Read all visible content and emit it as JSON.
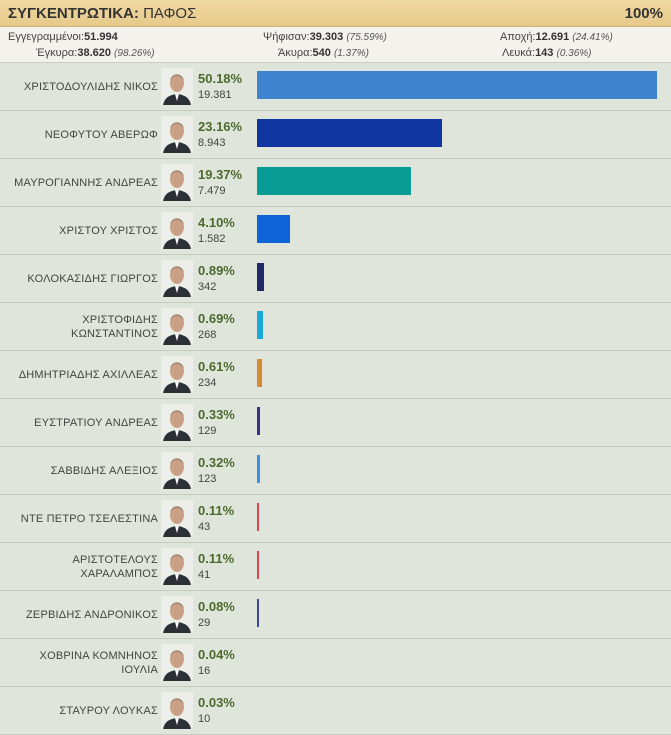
{
  "header": {
    "title_bold": "ΣΥΓΚΕΝΤΡΩΤΙΚΑ:",
    "title_place": "ΠΑΦΟΣ",
    "percent": "100%"
  },
  "stats": {
    "registered": {
      "label": "Εγγεγραμμένοι:",
      "value": "51.994"
    },
    "voted": {
      "label": "Ψήφισαν:",
      "value": "39.303",
      "pct": "(75.59%)"
    },
    "abstention": {
      "label": "Αποχή:",
      "value": "12.691",
      "pct": "(24.41%)"
    },
    "valid": {
      "label": "Έγκυρα:",
      "value": "38.620",
      "pct": "(98.26%)"
    },
    "invalid": {
      "label": "Άκυρα:",
      "value": "540",
      "pct": "(1.37%)"
    },
    "blank": {
      "label": "Λευκά:",
      "value": "143",
      "pct": "(0.36%)"
    }
  },
  "chart_data": {
    "type": "bar",
    "orientation": "horizontal",
    "xlim": [
      0,
      50.18
    ],
    "categories": [
      "ΧΡΙΣΤΟΔΟΥΛΙΔΗΣ ΝΙΚΟΣ",
      "ΝΕΟΦΥΤΟΥ ΑΒΕΡΩΦ",
      "ΜΑΥΡΟΓΙΑΝΝΗΣ ΑΝΔΡΕΑΣ",
      "ΧΡΙΣΤΟΥ ΧΡΙΣΤΟΣ",
      "ΚΟΛΟΚΑΣΙΔΗΣ ΓΙΩΡΓΟΣ",
      "ΧΡΙΣΤΟΦΙΔΗΣ ΚΩΝΣΤΑΝΤΙΝΟΣ",
      "ΔΗΜΗΤΡΙΑΔΗΣ ΑΧΙΛΛΕΑΣ",
      "ΕΥΣΤΡΑΤΙΟΥ ΑΝΔΡΕΑΣ",
      "ΣΑΒΒΙΔΗΣ ΑΛΕΞΙΟΣ",
      "ΝΤΕ ΠΕΤΡΟ ΤΣΕΛΕΣΤΙΝΑ",
      "ΑΡΙΣΤΟΤΕΛΟΥΣ ΧΑΡΑΛΑΜΠΟΣ",
      "ΖΕΡΒΙΔΗΣ ΑΝΔΡΟΝΙΚΟΣ",
      "ΧΟΒΡΙΝΑ ΚΟΜΝΗΝΟΣ ΙΟΥΛΙΑ",
      "ΣΤΑΥΡΟΥ ΛΟΥΚΑΣ"
    ],
    "values": [
      50.18,
      23.16,
      19.37,
      4.1,
      0.89,
      0.69,
      0.61,
      0.33,
      0.32,
      0.11,
      0.11,
      0.08,
      0.04,
      0.03
    ],
    "value_labels": [
      "50.18%",
      "23.16%",
      "19.37%",
      "4.10%",
      "0.89%",
      "0.69%",
      "0.61%",
      "0.33%",
      "0.32%",
      "0.11%",
      "0.11%",
      "0.08%",
      "0.04%",
      "0.03%"
    ],
    "votes": [
      "19.381",
      "8.943",
      "7.479",
      "1.582",
      "342",
      "268",
      "234",
      "129",
      "123",
      "43",
      "41",
      "29",
      "16",
      "10"
    ],
    "colors": [
      "#3f84cf",
      "#0f35a1",
      "#079c94",
      "#0d63d8",
      "#1f2a66",
      "#1aa7dc",
      "#d58a33",
      "#3a3384",
      "#3f8ee2",
      "#d8444c",
      "#d8444c",
      "#3c4792",
      "#c96a32",
      "#9a9a9a"
    ]
  }
}
